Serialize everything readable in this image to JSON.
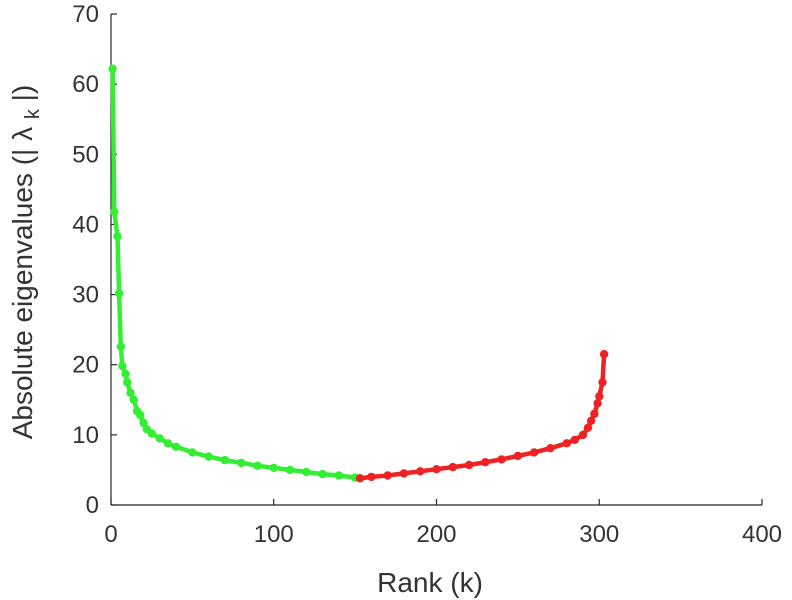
{
  "chart_data": {
    "type": "line",
    "title": "",
    "xlabel": "Rank (k)",
    "ylabel": "Absolute eigenvalues (|λ_k|)",
    "ylabel_parts": {
      "main": "Absolute eigenvalues (|",
      "symbol": "λ",
      "subscript": "k",
      "close": "|)"
    },
    "xlim": [
      0,
      400
    ],
    "ylim": [
      0,
      70
    ],
    "xticks": [
      "0",
      "100",
      "200",
      "300",
      "400"
    ],
    "yticks": [
      "0",
      "10",
      "20",
      "30",
      "40",
      "50",
      "60",
      "70"
    ],
    "grid": false,
    "legend": "none",
    "series": [
      {
        "color": "#33ee33",
        "points": [
          [
            1,
            62.2
          ],
          [
            2,
            41.8
          ],
          [
            4,
            38.3
          ],
          [
            5,
            30.2
          ],
          [
            6,
            22.6
          ],
          [
            7,
            19.8
          ],
          [
            9,
            18.7
          ],
          [
            10,
            17.5
          ],
          [
            12,
            16.0
          ],
          [
            14,
            15.0
          ],
          [
            16,
            13.4
          ],
          [
            18,
            12.8
          ],
          [
            20,
            11.7
          ],
          [
            22,
            10.8
          ],
          [
            25,
            10.2
          ],
          [
            30,
            9.5
          ],
          [
            35,
            8.8
          ],
          [
            40,
            8.3
          ],
          [
            50,
            7.5
          ],
          [
            60,
            6.9
          ],
          [
            70,
            6.4
          ],
          [
            80,
            6.0
          ],
          [
            90,
            5.6
          ],
          [
            100,
            5.3
          ],
          [
            110,
            5.0
          ],
          [
            120,
            4.7
          ],
          [
            130,
            4.4
          ],
          [
            140,
            4.2
          ],
          [
            150,
            3.9
          ],
          [
            153,
            3.8
          ]
        ]
      },
      {
        "color": "#ee2222",
        "points": [
          [
            153,
            3.8
          ],
          [
            160,
            4.0
          ],
          [
            170,
            4.2
          ],
          [
            180,
            4.5
          ],
          [
            190,
            4.8
          ],
          [
            200,
            5.1
          ],
          [
            210,
            5.4
          ],
          [
            220,
            5.7
          ],
          [
            230,
            6.1
          ],
          [
            240,
            6.5
          ],
          [
            250,
            7.0
          ],
          [
            260,
            7.5
          ],
          [
            270,
            8.1
          ],
          [
            280,
            8.8
          ],
          [
            285,
            9.3
          ],
          [
            290,
            10.0
          ],
          [
            293,
            11.0
          ],
          [
            295,
            12.0
          ],
          [
            297,
            13.0
          ],
          [
            299,
            14.5
          ],
          [
            300,
            15.5
          ],
          [
            302,
            17.5
          ],
          [
            303,
            21.5
          ]
        ]
      }
    ]
  }
}
